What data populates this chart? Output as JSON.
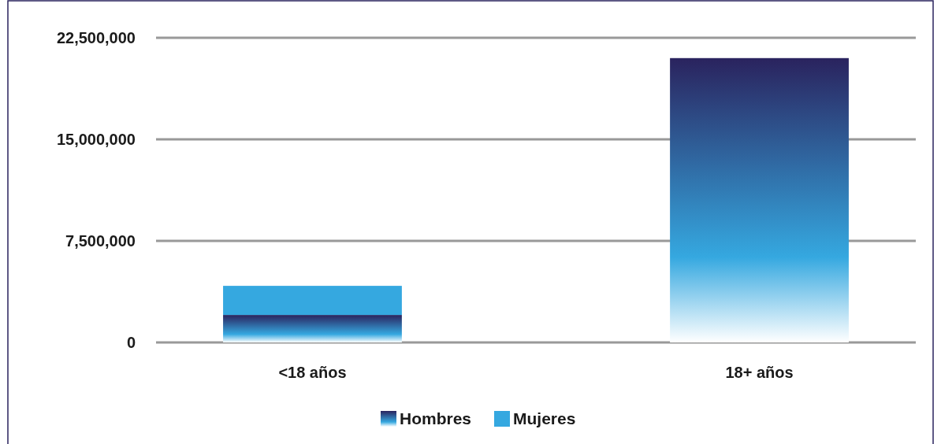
{
  "chart_data": {
    "type": "bar",
    "stacked": true,
    "categories": [
      "<18 años",
      "18+ años"
    ],
    "series": [
      {
        "name": "Hombres",
        "color": "#2a235e",
        "values": [
          2030000,
          21000000
        ]
      },
      {
        "name": "Mujeres",
        "color": "#35a8e0",
        "values": [
          2150000,
          null
        ]
      }
    ],
    "ylim": [
      0,
      22500000
    ],
    "yticks": [
      {
        "value": 0,
        "label": "0"
      },
      {
        "value": 7500000,
        "label": "7,500,000"
      },
      {
        "value": 15000000,
        "label": "15,000,000"
      },
      {
        "value": 22500000,
        "label": "22,500,000"
      }
    ],
    "grid": "y",
    "legend": "bottom"
  }
}
